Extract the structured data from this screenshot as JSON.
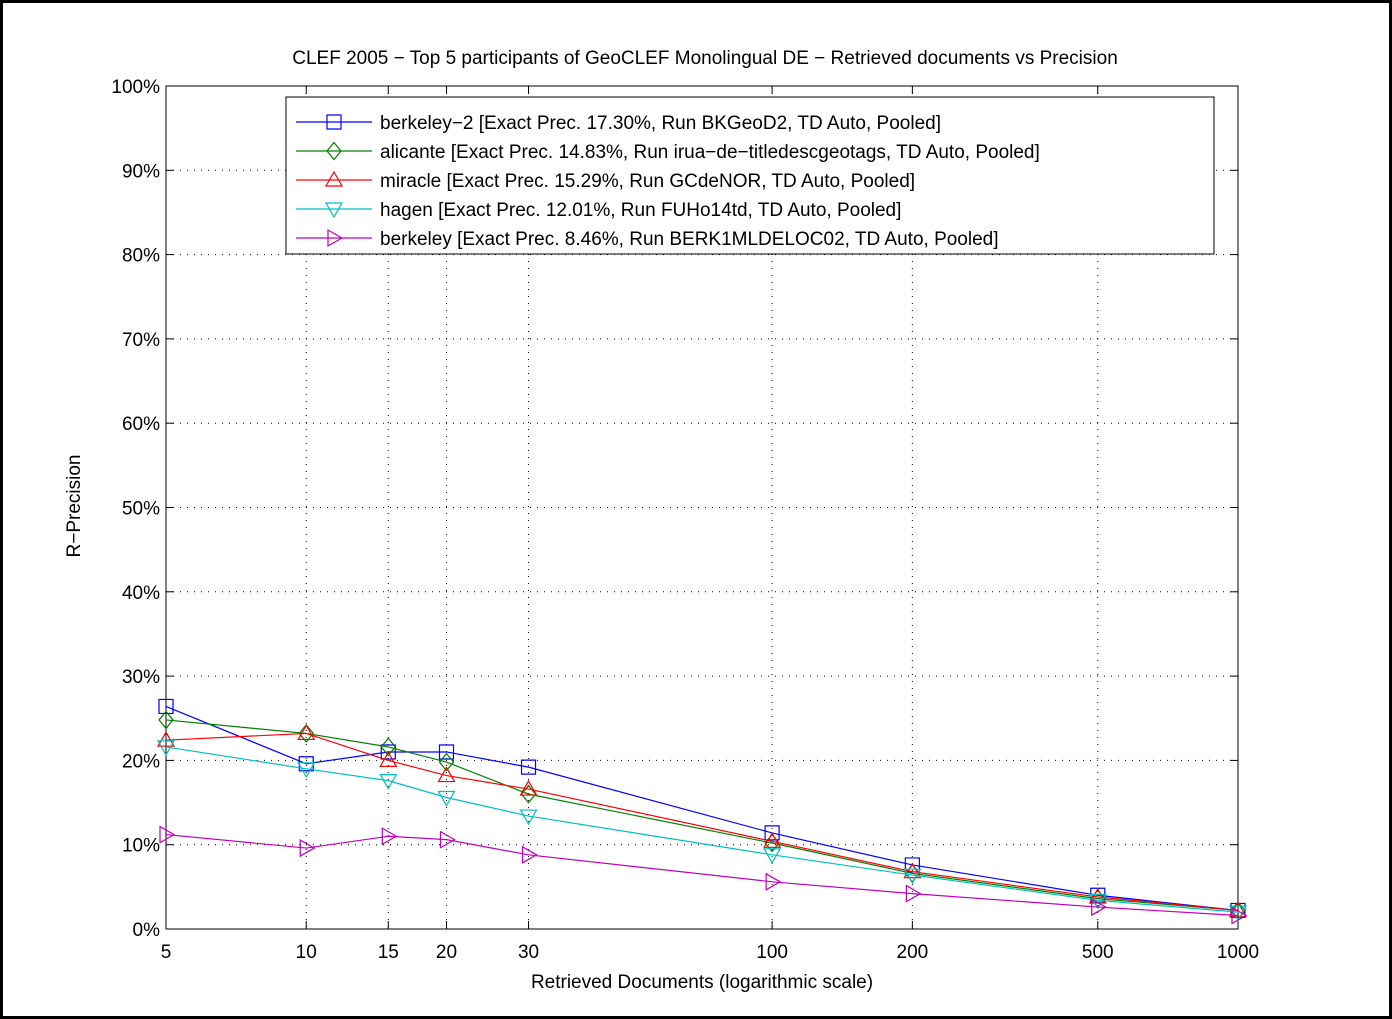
{
  "chart_data": {
    "type": "line",
    "title": "CLEF 2005 − Top 5 participants of GeoCLEF Monolingual DE − Retrieved documents vs Precision",
    "xlabel": "Retrieved Documents (logarithmic scale)",
    "ylabel": "R−Precision",
    "x_scale": "log",
    "xlim": [
      5,
      1000
    ],
    "ylim": [
      0,
      100
    ],
    "x": [
      5,
      10,
      15,
      20,
      30,
      100,
      200,
      500,
      1000
    ],
    "x_tick_labels": [
      "5",
      "10",
      "15",
      "20",
      "30",
      "100",
      "200",
      "500",
      "1000"
    ],
    "y_ticks": [
      0,
      10,
      20,
      30,
      40,
      50,
      60,
      70,
      80,
      90,
      100
    ],
    "y_tick_labels": [
      "0%",
      "10%",
      "20%",
      "30%",
      "40%",
      "50%",
      "60%",
      "70%",
      "80%",
      "90%",
      "100%"
    ],
    "grid": true,
    "legend_position": "top-right",
    "series": [
      {
        "name": "berkeley−2 [Exact Prec. 17.30%, Run BKGeoD2, TD Auto, Pooled]",
        "color": "#0000ff",
        "marker": "square",
        "values": [
          26.4,
          19.6,
          21.0,
          21.0,
          19.2,
          11.4,
          7.6,
          4.0,
          2.2
        ]
      },
      {
        "name": "alicante [Exact Prec. 14.83%, Run irua−de−titledescgeotags, TD Auto, Pooled]",
        "color": "#008000",
        "marker": "diamond",
        "values": [
          24.8,
          23.2,
          21.6,
          19.8,
          16.0,
          10.2,
          6.6,
          3.6,
          2.2
        ]
      },
      {
        "name": "miracle [Exact Prec. 15.29%, Run GCdeNOR, TD Auto, Pooled]",
        "color": "#ff0000",
        "marker": "triangle-up",
        "values": [
          22.4,
          23.2,
          20.0,
          18.2,
          16.6,
          10.4,
          6.8,
          3.8,
          2.2
        ]
      },
      {
        "name": "hagen [Exact Prec. 12.01%, Run FUHo14td, TD Auto, Pooled]",
        "color": "#00bfbf",
        "marker": "triangle-down",
        "values": [
          21.6,
          19.0,
          17.6,
          15.6,
          13.4,
          8.8,
          6.4,
          3.4,
          2.0
        ]
      },
      {
        "name": "berkeley [Exact Prec. 8.46%, Run BERK1MLDELOC02, TD Auto, Pooled]",
        "color": "#bf00bf",
        "marker": "triangle-right",
        "values": [
          11.2,
          9.6,
          11.0,
          10.6,
          8.8,
          5.6,
          4.2,
          2.6,
          1.6
        ]
      }
    ]
  }
}
